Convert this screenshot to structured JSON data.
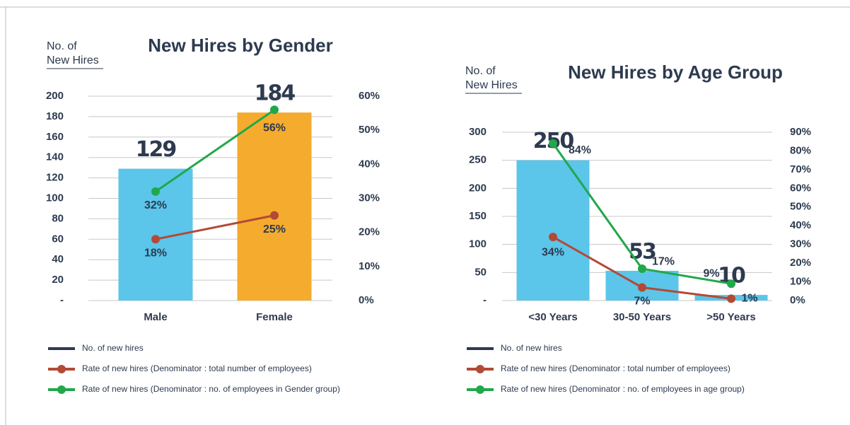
{
  "chart_data": [
    {
      "type": "bar",
      "title": "New Hires by Gender",
      "ylabel_lines": [
        "No. of",
        "New Hires"
      ],
      "categories": [
        "Male",
        "Female"
      ],
      "series": [
        {
          "name": "No. of new hires",
          "type": "bar",
          "color": "#2d3a4f",
          "colors": [
            "#5bc5ea",
            "#f5ab2e"
          ],
          "values": [
            129,
            184
          ]
        },
        {
          "name": "Rate of new hires (Denominator : total number of employees)",
          "type": "line",
          "axis": "y2",
          "color": "#b24a35",
          "values": [
            18,
            25
          ],
          "value_labels": [
            "18%",
            "25%"
          ]
        },
        {
          "name": "Rate of new hires (Denominator : no. of employees in Gender group)",
          "type": "line",
          "axis": "y2",
          "color": "#20a84a",
          "values": [
            32,
            56
          ],
          "value_labels": [
            "32%",
            "56%"
          ]
        }
      ],
      "ylim": [
        0,
        200
      ],
      "yticks": [
        {
          "value": 0,
          "label": "-"
        },
        20,
        40,
        60,
        80,
        100,
        120,
        140,
        160,
        180,
        200
      ],
      "y2lim": [
        0,
        60
      ],
      "y2ticks": [
        {
          "value": 0,
          "label": "0%"
        },
        {
          "value": 10,
          "label": "10%"
        },
        {
          "value": 20,
          "label": "20%"
        },
        {
          "value": 30,
          "label": "30%"
        },
        {
          "value": 40,
          "label": "40%"
        },
        {
          "value": 50,
          "label": "50%"
        },
        {
          "value": 60,
          "label": "60%"
        }
      ],
      "grid": true
    },
    {
      "type": "bar",
      "title": "New Hires by Age Group",
      "ylabel_lines": [
        "No. of",
        "New Hires"
      ],
      "categories": [
        "<30 Years",
        "30-50 Years",
        ">50 Years"
      ],
      "series": [
        {
          "name": "No. of new hires",
          "type": "bar",
          "color": "#2d3a4f",
          "colors": [
            "#5bc5ea",
            "#5bc5ea",
            "#5bc5ea"
          ],
          "values": [
            250,
            53,
            10
          ]
        },
        {
          "name": "Rate of new hires (Denominator : total number of employees)",
          "type": "line",
          "axis": "y2",
          "color": "#b24a35",
          "values": [
            34,
            7,
            1
          ],
          "value_labels": [
            "34%",
            "7%",
            "1%"
          ]
        },
        {
          "name": "Rate of new hires (Denominator : no. of employees in age group)",
          "type": "line",
          "axis": "y2",
          "color": "#20a84a",
          "values": [
            84,
            17,
            9
          ],
          "value_labels": [
            "84%",
            "17%",
            "9%"
          ]
        }
      ],
      "ylim": [
        0,
        300
      ],
      "yticks": [
        {
          "value": 0,
          "label": "-"
        },
        50,
        100,
        150,
        200,
        250,
        300
      ],
      "y2lim": [
        0,
        90
      ],
      "y2ticks": [
        {
          "value": 0,
          "label": "0%"
        },
        {
          "value": 10,
          "label": "10%"
        },
        {
          "value": 20,
          "label": "20%"
        },
        {
          "value": 30,
          "label": "30%"
        },
        {
          "value": 40,
          "label": "40%"
        },
        {
          "value": 50,
          "label": "50%"
        },
        {
          "value": 60,
          "label": "60%"
        },
        {
          "value": 70,
          "label": "70%"
        },
        {
          "value": 80,
          "label": "80%"
        },
        {
          "value": 90,
          "label": "90%"
        }
      ],
      "grid": true
    }
  ]
}
